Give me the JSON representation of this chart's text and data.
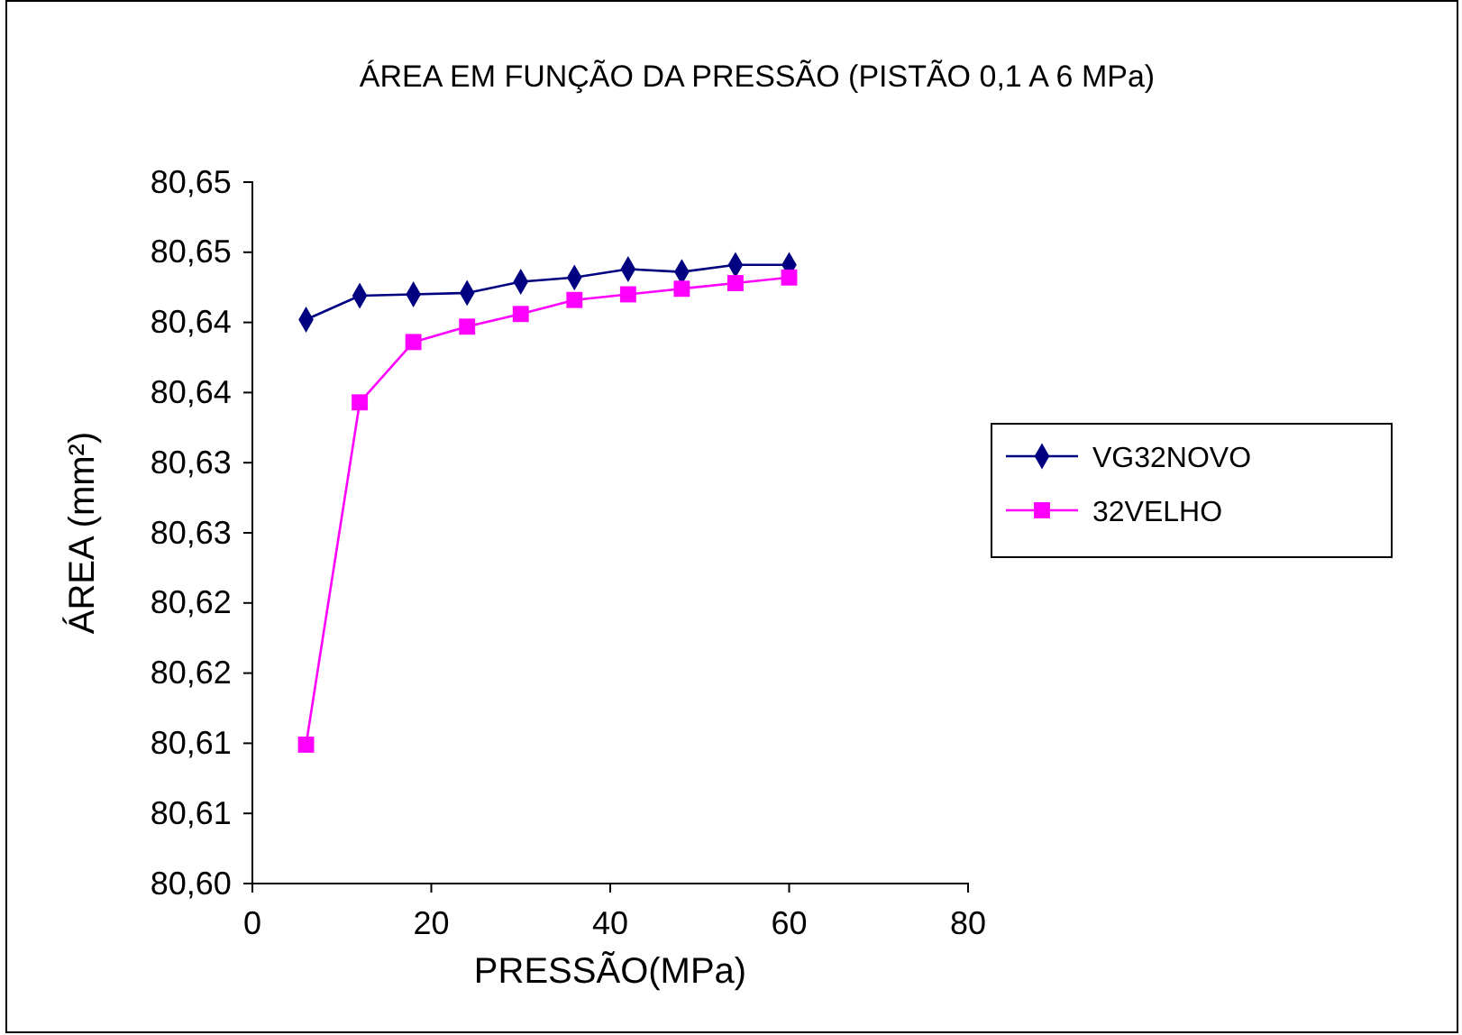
{
  "chart_data": {
    "type": "line",
    "title": "ÁREA EM FUNÇÃO DA PRESSÃO (PISTÃO 0,1 A 6 MPa)",
    "xlabel": "PRESSÃO(MPa)",
    "ylabel": "ÁREA (mm²)",
    "x": [
      6,
      12,
      18,
      24,
      30,
      36,
      42,
      48,
      54,
      60
    ],
    "series": [
      {
        "name": "VG32NOVO",
        "color": "#000080",
        "marker": "diamond",
        "values": [
          80.6402,
          80.6419,
          80.642,
          80.6421,
          80.6429,
          80.6432,
          80.6438,
          80.6436,
          80.6441,
          80.6441
        ]
      },
      {
        "name": "32VELHO",
        "color": "#ff00ff",
        "marker": "square",
        "values": [
          80.6099,
          80.6343,
          80.6386,
          80.6397,
          80.6406,
          80.6416,
          80.642,
          80.6424,
          80.6428,
          80.6432
        ]
      }
    ],
    "xlim": [
      0,
      80
    ],
    "xticks": [
      0,
      20,
      40,
      60,
      80
    ],
    "ylim": [
      80.6,
      80.65
    ],
    "yticks": [
      {
        "value": 80.6,
        "label": "80,60"
      },
      {
        "value": 80.605,
        "label": "80,61"
      },
      {
        "value": 80.61,
        "label": "80,61"
      },
      {
        "value": 80.615,
        "label": "80,62"
      },
      {
        "value": 80.62,
        "label": "80,62"
      },
      {
        "value": 80.625,
        "label": "80,63"
      },
      {
        "value": 80.63,
        "label": "80,63"
      },
      {
        "value": 80.635,
        "label": "80,64"
      },
      {
        "value": 80.64,
        "label": "80,64"
      },
      {
        "value": 80.645,
        "label": "80,65"
      },
      {
        "value": 80.65,
        "label": "80,65"
      }
    ],
    "grid": false,
    "legend": "right",
    "line_style": "solid"
  }
}
